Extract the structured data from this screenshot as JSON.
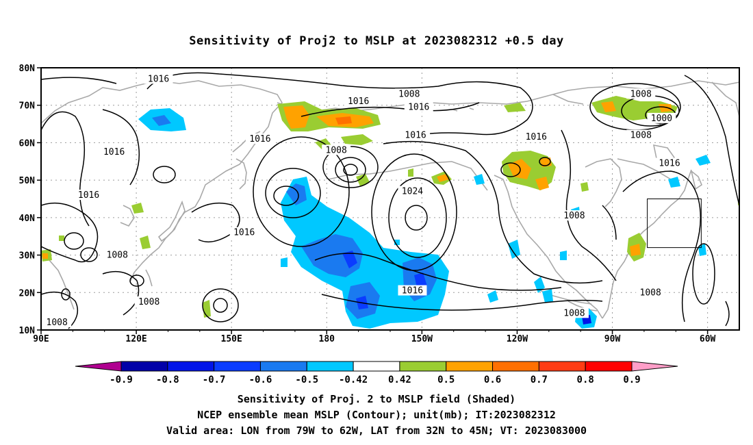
{
  "title": "Sensitivity of Proj2 to MSLP at 2023082312 +0.5 day",
  "lat_labels": [
    "80N",
    "70N",
    "60N",
    "50N",
    "40N",
    "30N",
    "20N",
    "10N"
  ],
  "lon_labels": [
    "90E",
    "120E",
    "150E",
    "180",
    "150W",
    "120W",
    "90W",
    "60W"
  ],
  "contour_labels": [
    {
      "text": "1016",
      "lon": 127,
      "lat": 77
    },
    {
      "text": "1008",
      "lon": -154,
      "lat": 73
    },
    {
      "text": "1016",
      "lon": -170,
      "lat": 71
    },
    {
      "text": "1016",
      "lon": -151,
      "lat": 69.5
    },
    {
      "text": "1016",
      "lon": 159,
      "lat": 61
    },
    {
      "text": "1008",
      "lon": -177,
      "lat": 58
    },
    {
      "text": "1016",
      "lon": -152,
      "lat": 62
    },
    {
      "text": "1016",
      "lon": -114,
      "lat": 61.5
    },
    {
      "text": "1008",
      "lon": -81,
      "lat": 73
    },
    {
      "text": "1000",
      "lon": -74.5,
      "lat": 66.5
    },
    {
      "text": "1008",
      "lon": -81,
      "lat": 62
    },
    {
      "text": "1016",
      "lon": -72,
      "lat": 54.5
    },
    {
      "text": "1016",
      "lon": 113,
      "lat": 57.5
    },
    {
      "text": "1016",
      "lon": 105,
      "lat": 46
    },
    {
      "text": "1024",
      "lon": -153,
      "lat": 47
    },
    {
      "text": "1008",
      "lon": -102,
      "lat": 40.5
    },
    {
      "text": "1016",
      "lon": 154,
      "lat": 36
    },
    {
      "text": "1008",
      "lon": 114,
      "lat": 30
    },
    {
      "text": "1016",
      "lon": -153,
      "lat": 20.5
    },
    {
      "text": "1008",
      "lon": 124,
      "lat": 17.5
    },
    {
      "text": "1008",
      "lon": -78,
      "lat": 20
    },
    {
      "text": "1008",
      "lon": -102,
      "lat": 14.5
    },
    {
      "text": "1008",
      "lon": 95,
      "lat": 12
    }
  ],
  "colorbar": {
    "colors": [
      "#b00090",
      "#0000a8",
      "#0014e8",
      "#0a3cff",
      "#1a7af0",
      "#00c8ff",
      "#ffffff",
      "#9acd32",
      "#ffa200",
      "#ff7000",
      "#ff3c14",
      "#ff0000",
      "#ff9ec8"
    ],
    "labels": [
      "-0.9",
      "-0.8",
      "-0.7",
      "-0.6",
      "-0.5",
      "-0.42",
      "0.42",
      "0.5",
      "0.6",
      "0.7",
      "0.8",
      "0.9"
    ]
  },
  "footer": [
    "Sensitivity of Proj. 2 to MSLP field (Shaded)",
    "NCEP ensemble mean MSLP (Contour); unit(mb); IT:2023082312",
    "Valid area: LON from 79W to 62W, LAT from 32N to 45N; VT: 2023083000"
  ]
}
